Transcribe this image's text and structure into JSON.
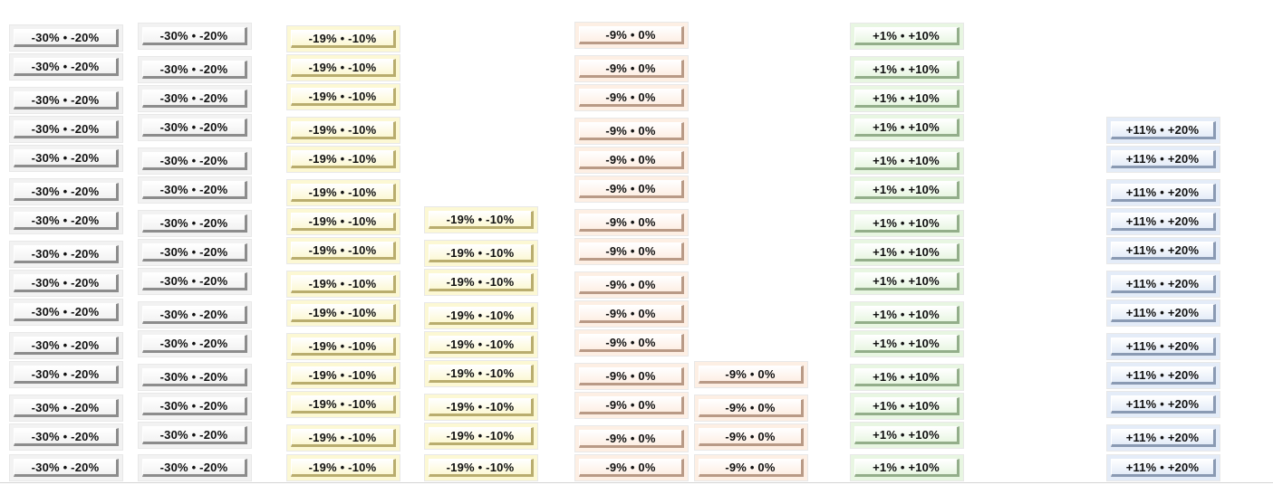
{
  "chart_data": {
    "type": "bar",
    "title": "",
    "xlabel": "",
    "ylabel": "",
    "categories": [
      "-30% • -20%",
      "-19% • -10%",
      "-9% • 0%",
      "+1% • +10%",
      "+11% • +20%"
    ],
    "columns": [
      {
        "label": "-30% • -20%",
        "count": 15,
        "color": "#f2f2f2",
        "edge": "#8c8c8c"
      },
      {
        "label": "-30% • -20%",
        "count": 15,
        "color": "#f2f2f2",
        "edge": "#8c8c8c"
      },
      {
        "label": "-19% • -10%",
        "count": 15,
        "color": "#fcf8d4",
        "edge": "#b9ad6e"
      },
      {
        "label": "-19% • -10%",
        "count": 9,
        "color": "#fcf8d4",
        "edge": "#b9ad6e"
      },
      {
        "label": "-9% • 0%",
        "count": 15,
        "color": "#fdefe4",
        "edge": "#b99a86"
      },
      {
        "label": "-9% • 0%",
        "count": 4,
        "color": "#fdefe4",
        "edge": "#b99a86"
      },
      {
        "label": "+1% • +10%",
        "count": 15,
        "color": "#e8f6e2",
        "edge": "#93ae8a"
      },
      {
        "label": "+11% • +20%",
        "count": 12,
        "color": "#e4ecf8",
        "edge": "#8a9ab3"
      }
    ]
  }
}
